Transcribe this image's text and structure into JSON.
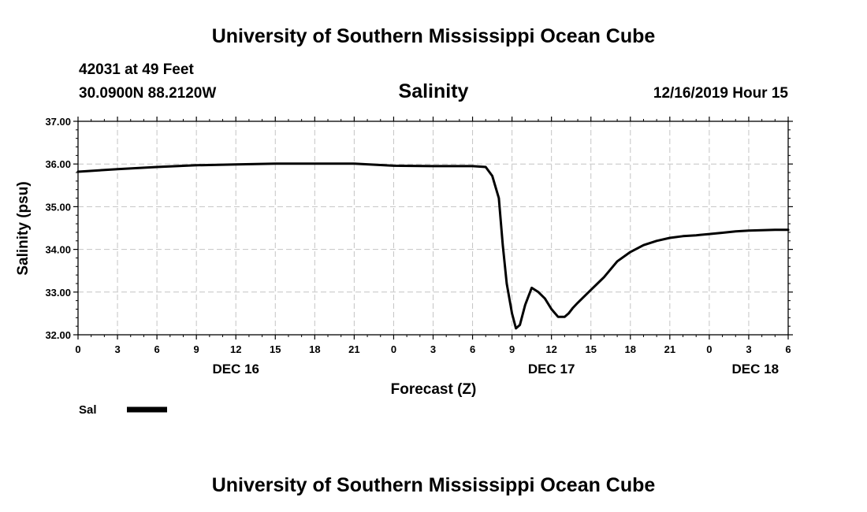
{
  "header": {
    "title_top": "University of Southern Mississippi Ocean Cube",
    "station": "42031 at 49 Feet",
    "coords": "30.0900N 88.2120W",
    "datetime": "12/16/2019 Hour 15",
    "title_bottom": "University of Southern Mississippi Ocean Cube"
  },
  "chart_data": {
    "type": "line",
    "title": "Salinity",
    "xlabel": "Forecast (Z)",
    "ylabel": "Salinity (psu)",
    "xlim": [
      0,
      54
    ],
    "ylim": [
      32,
      37
    ],
    "y_ticks": [
      "32.00",
      "33.00",
      "34.00",
      "35.00",
      "36.00",
      "37.00"
    ],
    "x_tick_labels": [
      "0",
      "3",
      "6",
      "9",
      "12",
      "15",
      "18",
      "21",
      "0",
      "3",
      "6",
      "9",
      "12",
      "15",
      "18",
      "21",
      "0",
      "3",
      "6"
    ],
    "day_labels": [
      {
        "label": "DEC 16",
        "at_hour": 12
      },
      {
        "label": "DEC 17",
        "at_hour": 36
      },
      {
        "label": "DEC 18",
        "at_hour": 51.5
      }
    ],
    "grid": true,
    "legend_position": "bottom-left",
    "series": [
      {
        "name": "Sal",
        "color": "#000000",
        "x": [
          0,
          3,
          6,
          9,
          12,
          15,
          18,
          21,
          24,
          27,
          30,
          31,
          31.5,
          32,
          32.3,
          32.6,
          33,
          33.3,
          33.6,
          34,
          34.5,
          35,
          35.5,
          36,
          36.5,
          37,
          37.3,
          37.6,
          38,
          39,
          40,
          41,
          42,
          43,
          44,
          45,
          46,
          47,
          48,
          49,
          50,
          51,
          52,
          53,
          54
        ],
        "values": [
          35.82,
          35.88,
          35.93,
          35.97,
          35.99,
          36.01,
          36.01,
          36.01,
          35.96,
          35.95,
          35.95,
          35.93,
          35.72,
          35.2,
          34.1,
          33.2,
          32.5,
          32.15,
          32.23,
          32.7,
          33.1,
          33.0,
          32.85,
          32.6,
          32.42,
          32.42,
          32.5,
          32.62,
          32.75,
          33.05,
          33.35,
          33.72,
          33.94,
          34.1,
          34.2,
          34.27,
          34.31,
          34.33,
          34.36,
          34.39,
          34.42,
          34.44,
          34.45,
          34.46,
          34.46
        ]
      }
    ]
  }
}
